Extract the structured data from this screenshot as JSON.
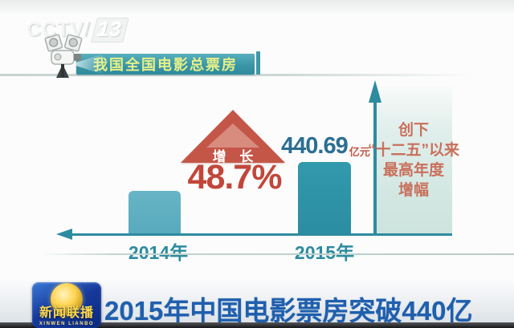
{
  "watermark": {
    "brand": "CCTV",
    "slash": "/",
    "channel": "13"
  },
  "header": {
    "banner_title": "我国全国电影总票房"
  },
  "chart_data": {
    "type": "bar",
    "title": "我国全国电影总票房",
    "categories": [
      "2014年",
      "2015年"
    ],
    "series": [
      {
        "name": "全国电影总票房",
        "values": [
          null,
          440.69
        ]
      }
    ],
    "unit": "亿元",
    "value_label_2015": "440.69",
    "growth_label": "增 长",
    "growth_value": "48.7%",
    "relative_heights": [
      0.6,
      1.0
    ],
    "annotation_lines": [
      "创下",
      "“十二五”以来",
      "最高年度",
      "增幅"
    ],
    "layout": {
      "grid": false,
      "value_axis_arrow": "up",
      "baseline_arrow": "left",
      "annotation_position": "right-panel"
    }
  },
  "footer": {
    "logo_title": "新闻联播",
    "logo_subtitle": "XINWEN LIANBO",
    "headline": "2015年中国电影票房突破440亿"
  },
  "colors": {
    "bar_2014": "#5fb0c2",
    "bar_2015": "#2e93a8",
    "axis_teal": "#2d8ba0",
    "triangle_red": "#c45648",
    "triangle_inner": "#d78c7e",
    "pct_red": "#c2463a",
    "value_blue": "#2b6e93",
    "unit_red": "#c2584a",
    "note_salmon": "#c9705c",
    "banner_teal": "#3a96a6",
    "banner_text": "#e6f088",
    "headline_blue": "#1f5fad"
  }
}
